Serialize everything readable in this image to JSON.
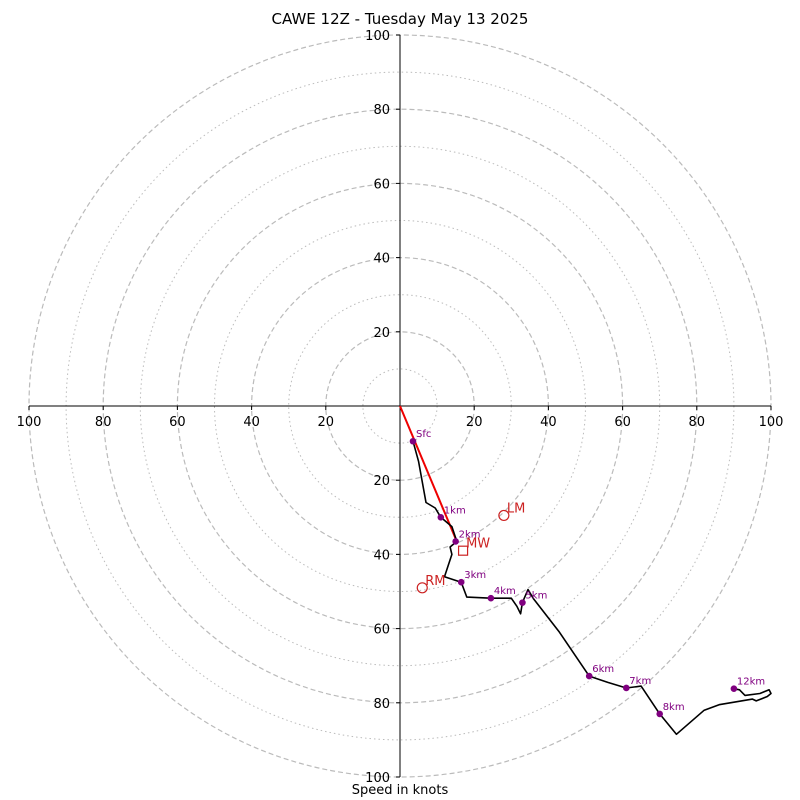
{
  "chart_data": {
    "type": "hodograph",
    "title": "CAWE 12Z - Tuesday May 13 2025",
    "xlabel": "Speed in knots",
    "axis_range": [
      -100,
      100
    ],
    "ring_tick_labels": [
      "20",
      "40",
      "60",
      "80",
      "100"
    ],
    "axis_tick_labels": [
      "100",
      "80",
      "60",
      "40",
      "20",
      "20",
      "40",
      "60",
      "80",
      "100"
    ],
    "rings_major": [
      20,
      40,
      60,
      80,
      100
    ],
    "rings_minor": [
      10,
      30,
      50,
      70,
      90
    ],
    "grid": true,
    "colors": {
      "profile": "#000000",
      "height_marker": "#800080",
      "motion": "#cc2222",
      "shear_vector": "#ee0000",
      "grid": "#bbbbbb"
    },
    "profile": [
      [
        3.5,
        -9.5
      ],
      [
        5,
        -15
      ],
      [
        7,
        -26
      ],
      [
        9.5,
        -27.5
      ],
      [
        11,
        -30
      ],
      [
        14,
        -32.5
      ],
      [
        15.3,
        -36.5
      ],
      [
        13.5,
        -38
      ],
      [
        14,
        -40
      ],
      [
        13,
        -43
      ],
      [
        12,
        -46
      ],
      [
        16.5,
        -47.5
      ],
      [
        18,
        -51.5
      ],
      [
        24.5,
        -51.8
      ],
      [
        30,
        -51.8
      ],
      [
        31.5,
        -54
      ],
      [
        32.5,
        -56
      ],
      [
        33,
        -53
      ],
      [
        34.5,
        -49.5
      ],
      [
        36,
        -52
      ],
      [
        43,
        -61
      ],
      [
        51,
        -72.8
      ],
      [
        56,
        -74.5
      ],
      [
        61,
        -76
      ],
      [
        65,
        -75.5
      ],
      [
        70,
        -83
      ],
      [
        74.5,
        -88.5
      ],
      [
        82,
        -82
      ],
      [
        86,
        -80.5
      ],
      [
        95,
        -79
      ],
      [
        96,
        -79.5
      ],
      [
        99,
        -78.3
      ],
      [
        100,
        -77.5
      ],
      [
        99.5,
        -76.5
      ],
      [
        97,
        -77.5
      ],
      [
        93,
        -78
      ],
      [
        91.5,
        -76.5
      ],
      [
        90,
        -76.2
      ]
    ],
    "height_markers": [
      {
        "label": "Sfc",
        "u": 3.5,
        "v": -9.5
      },
      {
        "label": "1km",
        "u": 11,
        "v": -30
      },
      {
        "label": "2km",
        "u": 15,
        "v": -36.5
      },
      {
        "label": "3km",
        "u": 16.5,
        "v": -47.5
      },
      {
        "label": "4km",
        "u": 24.5,
        "v": -51.8
      },
      {
        "label": "5km",
        "u": 33,
        "v": -53
      },
      {
        "label": "6km",
        "u": 51,
        "v": -72.8
      },
      {
        "label": "7km",
        "u": 61,
        "v": -76
      },
      {
        "label": "8km",
        "u": 70,
        "v": -83
      },
      {
        "label": "12km",
        "u": 90,
        "v": -76.2
      }
    ],
    "storm_motion": [
      {
        "label": "LM",
        "u": 28,
        "v": -29.5,
        "marker": "circle"
      },
      {
        "label": "MW",
        "u": 17,
        "v": -39,
        "marker": "square"
      },
      {
        "label": "RM",
        "u": 6,
        "v": -49,
        "marker": "circle"
      }
    ],
    "shear_vector": {
      "from": [
        0,
        0
      ],
      "to": [
        15.3,
        -36.5
      ]
    }
  }
}
